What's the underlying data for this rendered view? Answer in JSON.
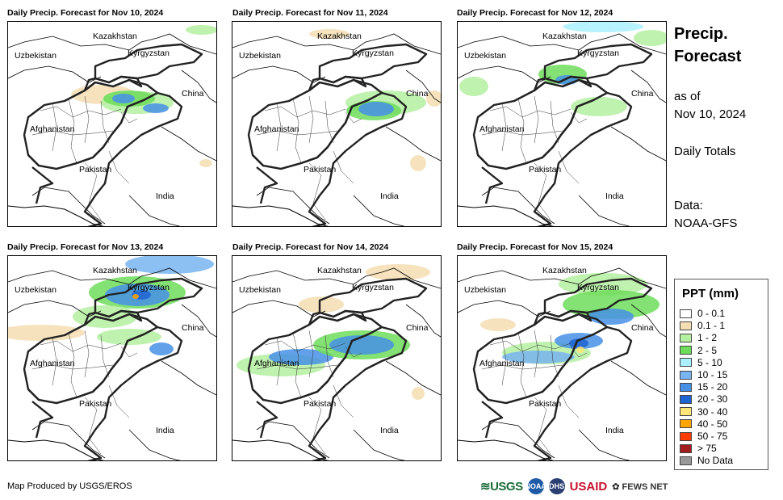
{
  "panels": [
    {
      "title": "Daily Precip. Forecast for Nov 10, 2024"
    },
    {
      "title": "Daily Precip. Forecast for Nov 11, 2024"
    },
    {
      "title": "Daily Precip. Forecast for Nov 12, 2024"
    },
    {
      "title": "Daily Precip. Forecast for Nov 13, 2024"
    },
    {
      "title": "Daily Precip. Forecast for Nov 14, 2024"
    },
    {
      "title": "Daily Precip. Forecast for Nov 15, 2024"
    }
  ],
  "country_labels": {
    "kazakhstan": "Kazakhstan",
    "uzbekistan": "Uzbekistan",
    "kyrgyzstan": "Kyrgyzstan",
    "china": "China",
    "afghanistan": "Afghanistan",
    "pakistan": "Pakistan",
    "india": "India"
  },
  "side": {
    "title_line1": "Precip.",
    "title_line2": "Forecast",
    "asof_line1": "as of",
    "asof_line2": "Nov 10, 2024",
    "totals": "Daily Totals",
    "data_line1": "Data:",
    "data_line2": "NOAA-GFS"
  },
  "legend": {
    "title": "PPT (mm)",
    "items": [
      {
        "label": "0 - 0.1",
        "color": "#ffffff"
      },
      {
        "label": "0.1 - 1",
        "color": "#f5deb3"
      },
      {
        "label": "1 - 2",
        "color": "#b4f0a0"
      },
      {
        "label": "2 - 5",
        "color": "#6edc5a"
      },
      {
        "label": "5 - 10",
        "color": "#aaf0ff"
      },
      {
        "label": "10 - 15",
        "color": "#78b4f0"
      },
      {
        "label": "15 - 20",
        "color": "#4690e6"
      },
      {
        "label": "20 - 30",
        "color": "#1e64d2"
      },
      {
        "label": "30 - 40",
        "color": "#ffe678"
      },
      {
        "label": "40 - 50",
        "color": "#ffa500"
      },
      {
        "label": "50 - 75",
        "color": "#ff3c00"
      },
      {
        "label": "> 75",
        "color": "#a01e1e"
      },
      {
        "label": "No Data",
        "color": "#999999"
      }
    ]
  },
  "footer": {
    "credit": "Map Produced by USGS/EROS"
  },
  "logos": {
    "usgs": "USGS",
    "noaa": "NOAA",
    "dhs": "DHS",
    "usaid": "USAID",
    "fews": "FEWS NET"
  }
}
